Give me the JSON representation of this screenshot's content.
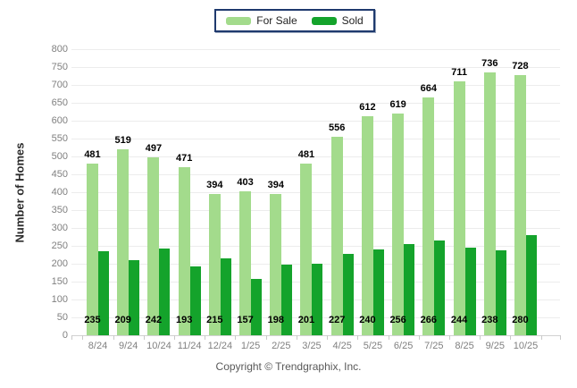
{
  "legend": {
    "items": [
      {
        "label": "For Sale",
        "color": "#a3db8c"
      },
      {
        "label": "Sold",
        "color": "#14a32b"
      }
    ]
  },
  "chart_data": {
    "type": "bar",
    "title": "",
    "xlabel": "",
    "ylabel": "Number of Homes",
    "ylim": [
      0,
      800
    ],
    "ytick_step": 50,
    "grid": true,
    "legend_position": "top-center",
    "categories": [
      "8/24",
      "9/24",
      "10/24",
      "11/24",
      "12/24",
      "1/25",
      "2/25",
      "3/25",
      "4/25",
      "5/25",
      "6/25",
      "7/25",
      "8/25",
      "9/25",
      "10/25"
    ],
    "series": [
      {
        "name": "For Sale",
        "color": "#a3db8c",
        "values": [
          481,
          519,
          497,
          471,
          394,
          403,
          394,
          481,
          556,
          612,
          619,
          664,
          711,
          736,
          728
        ],
        "label_position": "above-bar"
      },
      {
        "name": "Sold",
        "color": "#14a32b",
        "values": [
          235,
          209,
          242,
          193,
          215,
          157,
          198,
          201,
          227,
          240,
          256,
          266,
          244,
          238,
          280
        ],
        "label_position": "bottom"
      }
    ]
  },
  "footer": {
    "copyright": "Copyright © Trendgraphix, Inc."
  }
}
